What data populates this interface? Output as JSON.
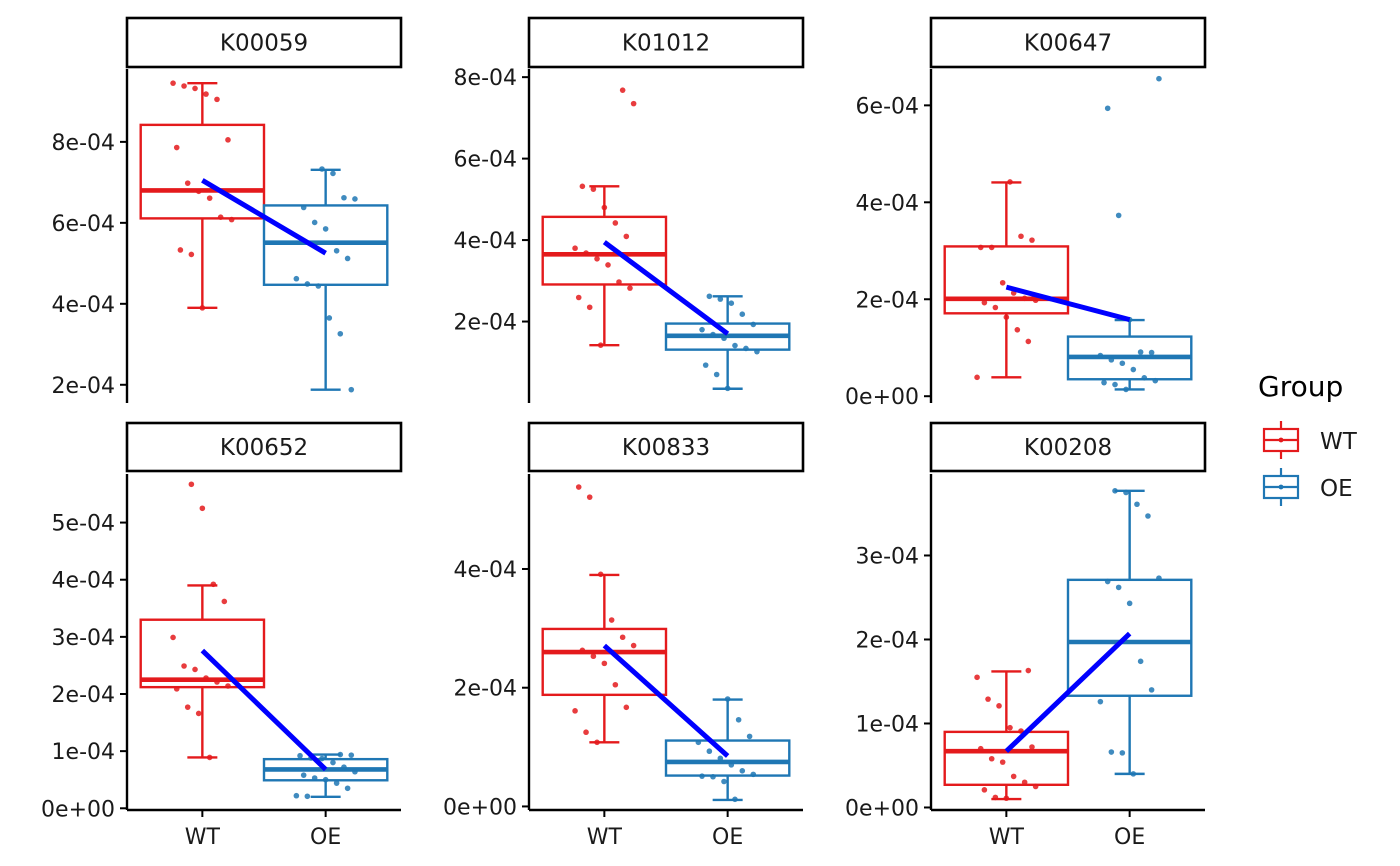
{
  "chart_data": {
    "type": "boxplot",
    "facet_layout": "2x3",
    "groups": [
      "WT",
      "OE"
    ],
    "colors": {
      "WT": "#E41A1C",
      "OE": "#1F77B4",
      "mean_line": "#0000FF"
    },
    "legend": {
      "title": "Group",
      "placement": "right",
      "entries": [
        "WT",
        "OE"
      ]
    },
    "panels": [
      {
        "title": "K00059",
        "ylim": [
          0.000155,
          0.00098
        ],
        "yticks": [
          0.0002,
          0.0004,
          0.0006,
          0.0008
        ],
        "ytick_labels": [
          "2e-04",
          "4e-04",
          "6e-04",
          "8e-04"
        ],
        "boxes": [
          {
            "group": "WT",
            "min": 0.00039,
            "q1": 0.000611,
            "median": 0.00068,
            "q3": 0.000842,
            "max": 0.000945,
            "points": [
              0.000945,
              0.000938,
              0.000932,
              0.000918,
              0.000905,
              0.000805,
              0.000786,
              0.000698,
              0.000678,
              0.000661,
              0.000614,
              0.000608,
              0.000533,
              0.000522,
              0.00039
            ]
          },
          {
            "group": "OE",
            "min": 0.000188,
            "q1": 0.000447,
            "median": 0.000551,
            "q3": 0.000643,
            "max": 0.000731,
            "points": [
              0.000733,
              0.000722,
              0.000662,
              0.000659,
              0.000638,
              0.000601,
              0.000585,
              0.000531,
              0.000512,
              0.000462,
              0.000449,
              0.000444,
              0.000365,
              0.000326,
              0.000188
            ]
          }
        ],
        "means": {
          "WT": 0.000705,
          "OE": 0.000525
        }
      },
      {
        "title": "K01012",
        "ylim": [
          0.0,
          0.00082
        ],
        "yticks": [
          0.0002,
          0.0004,
          0.0006,
          0.0008
        ],
        "ytick_labels": [
          "2e-04",
          "4e-04",
          "6e-04",
          "8e-04"
        ],
        "boxes": [
          {
            "group": "WT",
            "min": 0.000142,
            "q1": 0.000291,
            "median": 0.000365,
            "q3": 0.000457,
            "max": 0.000532,
            "points": [
              0.000768,
              0.000735,
              0.000532,
              0.000525,
              0.00048,
              0.000442,
              0.000409,
              0.00038,
              0.000368,
              0.000354,
              0.000339,
              0.000297,
              0.000282,
              0.000259,
              0.000235,
              0.000142
            ]
          },
          {
            "group": "OE",
            "min": 3.5e-05,
            "q1": 0.000131,
            "median": 0.000165,
            "q3": 0.000195,
            "max": 0.000262,
            "points": [
              0.000262,
              0.000255,
              0.000245,
              0.000218,
              0.000193,
              0.00018,
              0.000168,
              0.000159,
              0.000141,
              0.000134,
              0.000126,
              9.3e-05,
              7e-05,
              3.6e-05
            ]
          }
        ],
        "means": {
          "WT": 0.000395,
          "OE": 0.00017
        }
      },
      {
        "title": "K00647",
        "ylim": [
          -1.4e-05,
          0.000675
        ],
        "yticks": [
          0.0,
          0.0002,
          0.0004,
          0.0006
        ],
        "ytick_labels": [
          "0e+00",
          "2e-04",
          "4e-04",
          "6e-04"
        ],
        "boxes": [
          {
            "group": "WT",
            "min": 3.9e-05,
            "q1": 0.000171,
            "median": 0.000201,
            "q3": 0.000309,
            "max": 0.000441,
            "points": [
              0.000442,
              0.00033,
              0.000322,
              0.000307,
              0.000307,
              0.000234,
              0.000213,
              0.000202,
              0.000198,
              0.000193,
              0.000183,
              0.000163,
              0.000137,
              0.000113,
              3.9e-05
            ]
          },
          {
            "group": "OE",
            "min": 1.4e-05,
            "q1": 3.5e-05,
            "median": 8.1e-05,
            "q3": 0.000123,
            "max": 0.000157,
            "points": [
              0.000655,
              0.000594,
              0.000373,
              0.000158,
              9.1e-05,
              9e-05,
              8.4e-05,
              7.5e-05,
              6.8e-05,
              5.5e-05,
              3.8e-05,
              3.2e-05,
              2.8e-05,
              2.4e-05,
              1.4e-05
            ]
          }
        ],
        "means": {
          "WT": 0.000225,
          "OE": 0.000158
        }
      },
      {
        "title": "K00652",
        "ylim": [
          -3e-06,
          0.000585
        ],
        "yticks": [
          0.0,
          0.0001,
          0.0002,
          0.0003,
          0.0004,
          0.0005
        ],
        "ytick_labels": [
          "0e+00",
          "1e-04",
          "2e-04",
          "3e-04",
          "4e-04",
          "5e-04"
        ],
        "boxes": [
          {
            "group": "WT",
            "min": 8.9e-05,
            "q1": 0.000212,
            "median": 0.000225,
            "q3": 0.00033,
            "max": 0.00039,
            "points": [
              0.000567,
              0.000525,
              0.000392,
              0.000362,
              0.000299,
              0.000249,
              0.000243,
              0.000228,
              0.000221,
              0.000214,
              0.000209,
              0.000177,
              0.000166,
              8.9e-05
            ]
          },
          {
            "group": "OE",
            "min": 2e-05,
            "q1": 4.9e-05,
            "median": 6.8e-05,
            "q3": 8.6e-05,
            "max": 9.4e-05,
            "points": [
              9.4e-05,
              9.3e-05,
              9.2e-05,
              8.8e-05,
              8.7e-05,
              8e-05,
              7.2e-05,
              6.4e-05,
              5.8e-05,
              5.3e-05,
              5e-05,
              4.4e-05,
              3.5e-05,
              2.2e-05,
              2.1e-05
            ]
          }
        ],
        "means": {
          "WT": 0.000276,
          "OE": 6.8e-05
        }
      },
      {
        "title": "K00833",
        "ylim": [
          -6e-06,
          0.00056
        ],
        "yticks": [
          0.0,
          0.0002,
          0.0004
        ],
        "ytick_labels": [
          "0e+00",
          "2e-04",
          "4e-04"
        ],
        "boxes": [
          {
            "group": "WT",
            "min": 0.000108,
            "q1": 0.000188,
            "median": 0.00026,
            "q3": 0.000299,
            "max": 0.00039,
            "points": [
              0.000538,
              0.000521,
              0.000391,
              0.000314,
              0.000285,
              0.000271,
              0.000263,
              0.000253,
              0.000241,
              0.000205,
              0.000167,
              0.000161,
              0.000125,
              0.000108
            ]
          },
          {
            "group": "OE",
            "min": 1.1e-05,
            "q1": 5.2e-05,
            "median": 7.5e-05,
            "q3": 0.000111,
            "max": 0.00018,
            "points": [
              0.000181,
              0.000146,
              0.000118,
              0.000108,
              9.3e-05,
              8.1e-05,
              7e-05,
              6e-05,
              5.4e-05,
              5.1e-05,
              5e-05,
              4.2e-05,
              1.2e-05
            ]
          }
        ],
        "means": {
          "WT": 0.000271,
          "OE": 8.5e-05
        }
      },
      {
        "title": "K00208",
        "ylim": [
          -3e-06,
          0.000397
        ],
        "yticks": [
          0.0,
          0.0001,
          0.0002,
          0.0003
        ],
        "ytick_labels": [
          "0e+00",
          "1e-04",
          "2e-04",
          "3e-04"
        ],
        "boxes": [
          {
            "group": "WT",
            "min": 1e-05,
            "q1": 2.7e-05,
            "median": 6.7e-05,
            "q3": 9e-05,
            "max": 0.000162,
            "points": [
              0.000163,
              0.000155,
              0.000129,
              0.000121,
              9.5e-05,
              9.1e-05,
              7.2e-05,
              7e-05,
              5.8e-05,
              5.4e-05,
              3.7e-05,
              3e-05,
              2.5e-05,
              2.1e-05,
              1.2e-05,
              1.1e-05
            ]
          },
          {
            "group": "OE",
            "min": 4e-05,
            "q1": 0.000133,
            "median": 0.000197,
            "q3": 0.000271,
            "max": 0.000377,
            "points": [
              0.000377,
              0.000375,
              0.000361,
              0.000347,
              0.000273,
              0.000269,
              0.000262,
              0.000243,
              0.000174,
              0.00014,
              0.000126,
              6.6e-05,
              6.5e-05,
              4e-05
            ]
          }
        ],
        "means": {
          "WT": 6.7e-05,
          "OE": 0.000207
        }
      }
    ]
  }
}
